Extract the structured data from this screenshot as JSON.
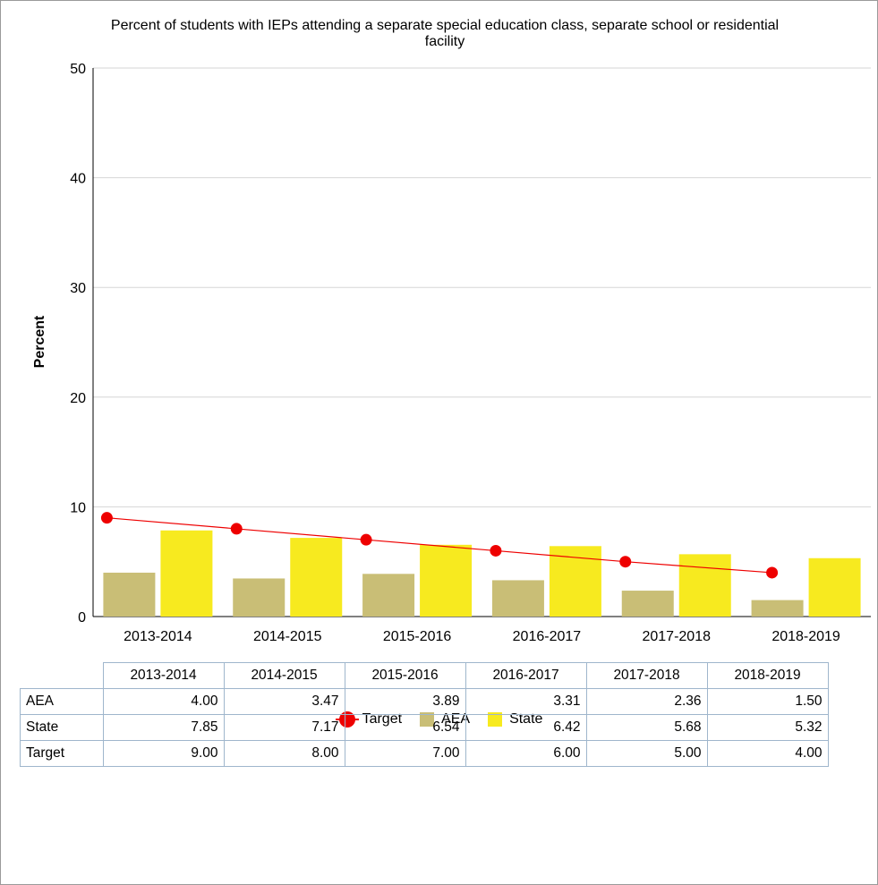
{
  "chart_data": {
    "type": "bar",
    "title": "Percent of students with IEPs attending a separate special education class, separate school or residential facility",
    "ylabel": "Percent",
    "xlabel": "",
    "ylim": [
      0,
      50
    ],
    "yticks": [
      0,
      10,
      20,
      30,
      40,
      50
    ],
    "grid": true,
    "legend_position": "bottom",
    "categories": [
      "2013-2014",
      "2014-2015",
      "2015-2016",
      "2016-2017",
      "2017-2018",
      "2018-2019"
    ],
    "series": [
      {
        "name": "AEA",
        "type": "bar",
        "color": "#c9be76",
        "values": [
          4.0,
          3.47,
          3.89,
          3.31,
          2.36,
          1.5
        ]
      },
      {
        "name": "State",
        "type": "bar",
        "color": "#f7ea1f",
        "values": [
          7.85,
          7.17,
          6.54,
          6.42,
          5.68,
          5.32
        ]
      },
      {
        "name": "Target",
        "type": "line",
        "color": "#ee0000",
        "values": [
          9.0,
          8.0,
          7.0,
          6.0,
          5.0,
          4.0
        ]
      }
    ],
    "legend": [
      "Target",
      "AEA",
      "State"
    ],
    "table": {
      "columns": [
        "2013-2014",
        "2014-2015",
        "2015-2016",
        "2016-2017",
        "2017-2018",
        "2018-2019"
      ],
      "rows": [
        {
          "label": "AEA",
          "cells": [
            "4.00",
            "3.47",
            "3.89",
            "3.31",
            "2.36",
            "1.50"
          ]
        },
        {
          "label": "State",
          "cells": [
            "7.85",
            "7.17",
            "6.54",
            "6.42",
            "5.68",
            "5.32"
          ]
        },
        {
          "label": "Target",
          "cells": [
            "9.00",
            "8.00",
            "7.00",
            "6.00",
            "5.00",
            "4.00"
          ]
        }
      ]
    }
  }
}
